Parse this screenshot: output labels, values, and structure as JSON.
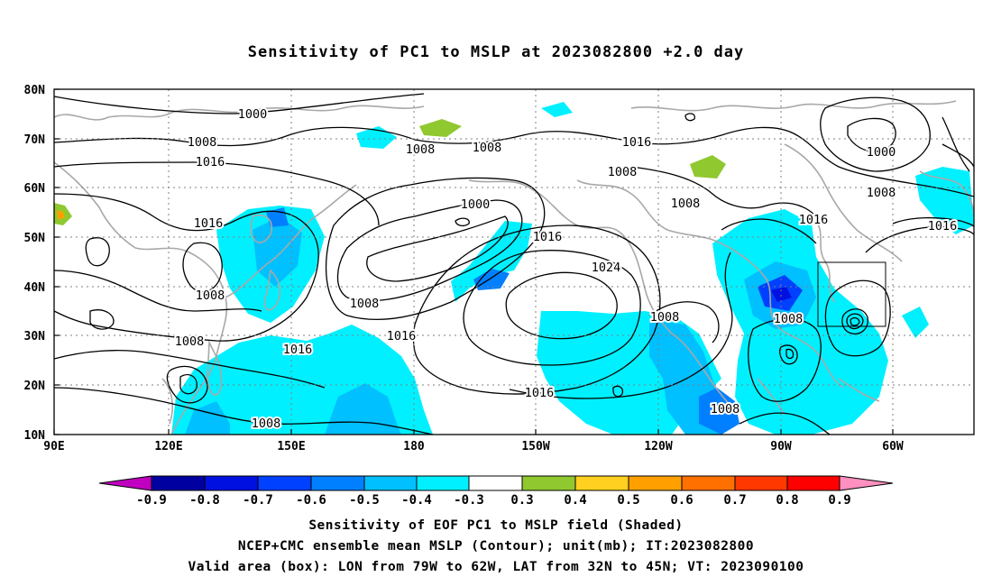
{
  "title": "Sensitivity of PC1 to MSLP at 2023082800 +2.0 day",
  "lat_labels": [
    "80N",
    "70N",
    "60N",
    "50N",
    "40N",
    "30N",
    "20N",
    "10N"
  ],
  "lon_labels": [
    "90E",
    "120E",
    "150E",
    "180",
    "150W",
    "120W",
    "90W",
    "60W"
  ],
  "colorbar": {
    "labels": [
      "-0.9",
      "-0.8",
      "-0.7",
      "-0.6",
      "-0.5",
      "-0.4",
      "-0.3",
      "0.3",
      "0.4",
      "0.5",
      "0.6",
      "0.7",
      "0.8",
      "0.9"
    ],
    "colors": [
      "#c000c0",
      "#0000a0",
      "#0010e0",
      "#0040ff",
      "#0080ff",
      "#00c0ff",
      "#00f0ff",
      "#ffffff",
      "#90c830",
      "#ffd020",
      "#ffa000",
      "#ff7000",
      "#ff3800",
      "#ff0000",
      "#ff90c0"
    ]
  },
  "contour_labels": [
    "1000",
    "1008",
    "1016",
    "1008",
    "1008",
    "1016",
    "1008",
    "1000",
    "1008",
    "1016",
    "1008",
    "1016",
    "1024",
    "1008",
    "1008",
    "1016",
    "1016",
    "1016",
    "1008",
    "1008",
    "1000",
    "1016",
    "1008",
    "1008",
    "1016",
    "1008",
    "1008",
    "1008"
  ],
  "captions": [
    "Sensitivity of EOF PC1 to MSLP field (Shaded)",
    "NCEP+CMC ensemble mean MSLP (Contour); unit(mb); IT:2023082800",
    "Valid area (box): LON from 79W to 62W, LAT from 32N to 45N; VT: 2023090100"
  ]
}
